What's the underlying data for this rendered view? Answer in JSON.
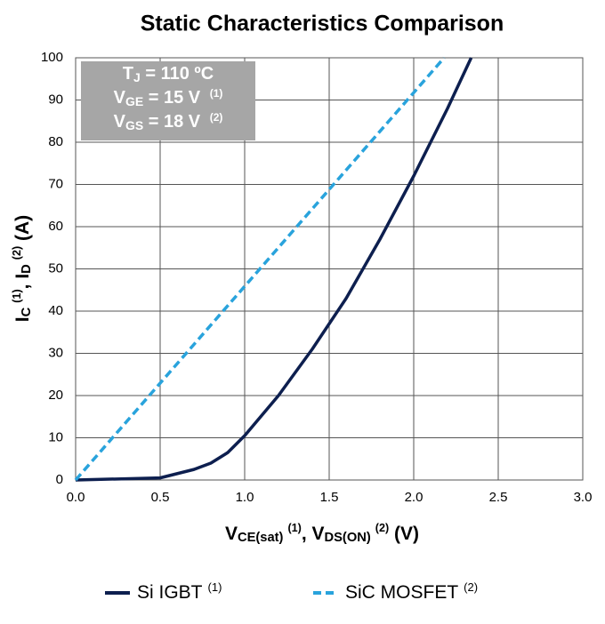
{
  "chart_data": {
    "type": "line",
    "title": "Static Characteristics Comparison",
    "xlabel": [
      {
        "text": "V",
        "shift": "base"
      },
      {
        "text": "CE(sat)",
        "shift": "sub"
      },
      {
        "text": "(1)",
        "shift": "sup"
      },
      {
        "text": ", V",
        "shift": "base"
      },
      {
        "text": "DS(ON)",
        "shift": "sub"
      },
      {
        "text": "(2)",
        "shift": "sup"
      },
      {
        "text": " (V)",
        "shift": "base"
      }
    ],
    "ylabel": [
      {
        "text": "I",
        "shift": "base"
      },
      {
        "text": "C",
        "shift": "sub"
      },
      {
        "text": "(1)",
        "shift": "sup"
      },
      {
        "text": ", I",
        "shift": "base"
      },
      {
        "text": "D",
        "shift": "sub"
      },
      {
        "text": "(2)",
        "shift": "sup"
      },
      {
        "text": " (A)",
        "shift": "base"
      }
    ],
    "annotation": {
      "color": "#a6a6a6",
      "lines": [
        [
          {
            "text": "T",
            "shift": "base"
          },
          {
            "text": "J",
            "shift": "sub"
          },
          {
            "text": " = 110 ºC",
            "shift": "base"
          }
        ],
        [
          {
            "text": "V",
            "shift": "base"
          },
          {
            "text": "GE",
            "shift": "sub"
          },
          {
            "text": " = 15 V ",
            "shift": "base"
          },
          {
            "text": "(1)",
            "shift": "sup"
          }
        ],
        [
          {
            "text": "V",
            "shift": "base"
          },
          {
            "text": "GS",
            "shift": "sub"
          },
          {
            "text": " = 18 V ",
            "shift": "base"
          },
          {
            "text": "(2)",
            "shift": "sup"
          }
        ]
      ]
    },
    "xlim": [
      0,
      3
    ],
    "ylim": [
      0,
      100
    ],
    "xticks": [
      {
        "value": 0,
        "label": "0.0"
      },
      0.5,
      {
        "value": 1,
        "label": "1.0"
      },
      1.5,
      {
        "value": 2,
        "label": "2.0"
      },
      2.5,
      {
        "value": 3,
        "label": "3.0"
      }
    ],
    "yticks": [
      0,
      10,
      20,
      30,
      40,
      50,
      60,
      70,
      80,
      90,
      100
    ],
    "grid": true,
    "legend": "bottom",
    "series": [
      {
        "name": "Si IGBT",
        "name_note": "(1)",
        "color": "#0d1f4f",
        "dash": false,
        "x": [
          0,
          0.5,
          0.7,
          0.8,
          0.9,
          1.0,
          1.2,
          1.4,
          1.5,
          1.6,
          1.8,
          2.0,
          2.2,
          2.34
        ],
        "values": [
          0,
          0.5,
          2.5,
          4,
          6.5,
          10.5,
          20,
          31,
          37,
          43,
          57,
          72,
          88,
          100
        ]
      },
      {
        "name": "SiC MOSFET",
        "name_note": "(2)",
        "color": "#29a3dc",
        "dash": true,
        "x": [
          0,
          2.18
        ],
        "values": [
          0,
          100
        ]
      }
    ]
  }
}
